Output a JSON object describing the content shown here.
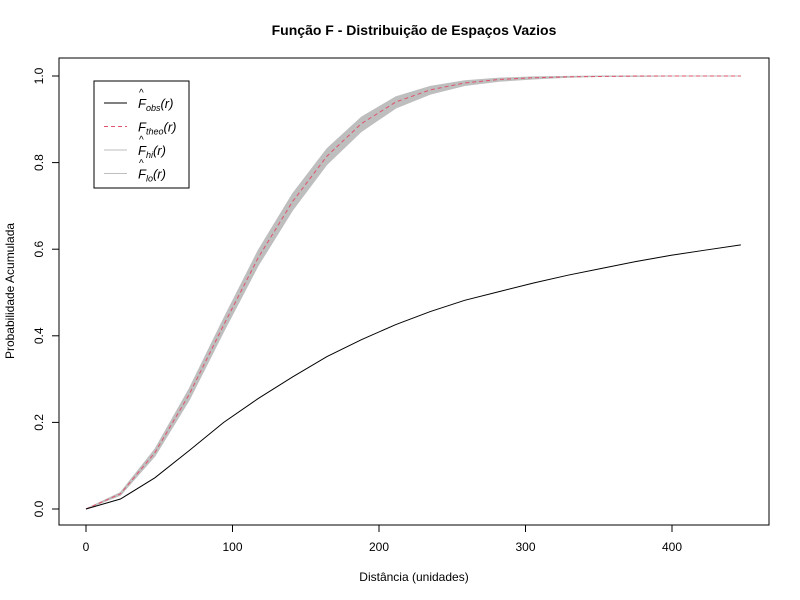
{
  "chart_data": {
    "type": "line",
    "title": "Função F - Distribuição de Espaços Vazios",
    "xlabel": "Distância (unidades)",
    "ylabel": "Probabilidade Acumulada",
    "xlim": [
      0,
      450
    ],
    "ylim": [
      0,
      1
    ],
    "x_ticks": [
      0,
      100,
      200,
      300,
      400
    ],
    "y_ticks": [
      0.0,
      0.2,
      0.4,
      0.6,
      0.8,
      1.0
    ],
    "x_tick_labels": [
      "0",
      "100",
      "200",
      "300",
      "400"
    ],
    "y_tick_labels": [
      "0.0",
      "0.2",
      "0.4",
      "0.6",
      "0.8",
      "1.0"
    ],
    "grid": false,
    "legend_position": "top-left",
    "legend": [
      {
        "key": "obs",
        "base": "F",
        "hat": true,
        "sub": "obs",
        "arg": "(r)",
        "color": "#000000",
        "dash": "solid"
      },
      {
        "key": "theo",
        "base": "F",
        "hat": false,
        "sub": "theo",
        "arg": "(r)",
        "color": "#DF536B",
        "dash": "dashed"
      },
      {
        "key": "hi",
        "base": "F",
        "hat": true,
        "sub": "hi",
        "arg": "(r)",
        "color": "#BEBEBE",
        "dash": "solid"
      },
      {
        "key": "lo",
        "base": "F",
        "hat": true,
        "sub": "lo",
        "arg": "(r)",
        "color": "#BEBEBE",
        "dash": "solid"
      }
    ],
    "x": [
      0,
      23.5,
      47,
      70.5,
      94,
      117.5,
      141,
      164.5,
      188,
      211.5,
      235,
      258.5,
      282,
      305.5,
      329,
      352.5,
      376,
      399.5,
      423,
      447
    ],
    "series": [
      {
        "key": "obs",
        "values": [
          0.0,
          0.023,
          0.072,
          0.135,
          0.2,
          0.255,
          0.305,
          0.352,
          0.391,
          0.426,
          0.456,
          0.482,
          0.502,
          0.522,
          0.54,
          0.556,
          0.572,
          0.586,
          0.598,
          0.61
        ]
      },
      {
        "key": "theo",
        "values": [
          0.0,
          0.035,
          0.13,
          0.265,
          0.425,
          0.58,
          0.71,
          0.815,
          0.89,
          0.94,
          0.968,
          0.984,
          0.992,
          0.996,
          0.998,
          0.999,
          1.0,
          1.0,
          1.0,
          1.0
        ]
      },
      {
        "key": "hi",
        "values": [
          0.0,
          0.038,
          0.138,
          0.278,
          0.44,
          0.597,
          0.728,
          0.832,
          0.905,
          0.952,
          0.976,
          0.989,
          0.995,
          0.998,
          0.999,
          1.0,
          1.0,
          1.0,
          1.0,
          1.0
        ]
      },
      {
        "key": "lo",
        "values": [
          0.0,
          0.032,
          0.122,
          0.252,
          0.41,
          0.562,
          0.69,
          0.796,
          0.872,
          0.926,
          0.958,
          0.978,
          0.988,
          0.993,
          0.997,
          0.999,
          0.999,
          1.0,
          1.0,
          1.0
        ]
      }
    ],
    "envelope_fill": "#BEBEBE"
  }
}
